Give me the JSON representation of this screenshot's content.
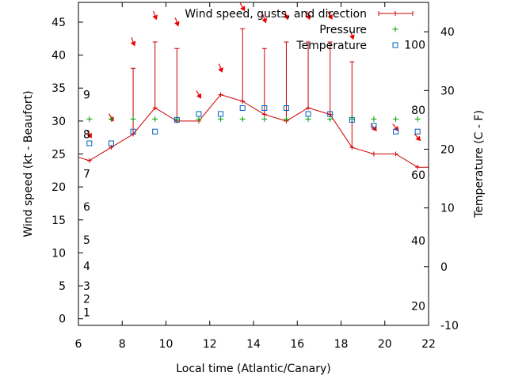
{
  "chart_data": {
    "type": "line",
    "title": "",
    "xlabel": "Local time (Atlantic/Canary)",
    "ylabel_left": "Wind speed (kt - Beaufort)",
    "ylabel_right": "Temperature (C - F)",
    "xlim": [
      6,
      22
    ],
    "ylim_left": [
      -1,
      48
    ],
    "ylim_right": [
      -10,
      45
    ],
    "x_ticks": [
      6,
      8,
      10,
      12,
      14,
      16,
      18,
      20,
      22
    ],
    "y_ticks_left": [
      0,
      5,
      10,
      15,
      20,
      25,
      30,
      35,
      40,
      45
    ],
    "y_ticks_right": [
      -10,
      0,
      10,
      20,
      30,
      40
    ],
    "beaufort_labels": [
      {
        "label": "1",
        "kt": 1
      },
      {
        "label": "2",
        "kt": 3
      },
      {
        "label": "3",
        "kt": 5
      },
      {
        "label": "4",
        "kt": 8
      },
      {
        "label": "5",
        "kt": 12
      },
      {
        "label": "6",
        "kt": 17
      },
      {
        "label": "7",
        "kt": 22
      },
      {
        "label": "8",
        "kt": 28
      },
      {
        "label": "9",
        "kt": 34
      }
    ],
    "fahrenheit_labels": [
      {
        "label": "20",
        "c": -6.7
      },
      {
        "label": "40",
        "c": 4.4
      },
      {
        "label": "60",
        "c": 15.6
      },
      {
        "label": "80",
        "c": 26.7
      },
      {
        "label": "100",
        "c": 37.8
      }
    ],
    "legend_position": "top-right",
    "series": [
      {
        "name": "Wind speed, gusts, and direction",
        "color": "#cc0000",
        "x": [
          5.5,
          6.5,
          7.5,
          8.5,
          9.5,
          10.5,
          11.5,
          12.5,
          13.5,
          14.5,
          15.5,
          16.5,
          17.5,
          18.5,
          19.5,
          20.5,
          21.5,
          22.5
        ],
        "speed": [
          25,
          24,
          26,
          28,
          32,
          30,
          30,
          34,
          33,
          31,
          30,
          32,
          31,
          26,
          25,
          25,
          23,
          23
        ],
        "gust": [
          null,
          null,
          null,
          38,
          42,
          41,
          null,
          null,
          44,
          41,
          42,
          42,
          42,
          39,
          null,
          null,
          null,
          null
        ],
        "arrow_x": [
          6.5,
          7.5,
          8.5,
          9.5,
          10.5,
          11.5,
          12.5,
          13.5,
          14.5,
          15.5,
          16.5,
          17.5,
          18.5,
          19.5,
          20.5,
          21.5
        ],
        "arrow_kt": [
          28,
          30.5,
          42,
          46,
          45,
          34,
          38,
          48,
          45.5,
          46,
          46,
          46,
          43,
          29,
          29,
          27.5
        ],
        "arrow_dir_deg": [
          210,
          210,
          200,
          200,
          200,
          210,
          200,
          210,
          200,
          200,
          200,
          210,
          200,
          220,
          220,
          220
        ]
      },
      {
        "name": "Pressure",
        "color": "#00a000",
        "x": [
          6.5,
          7.5,
          8.5,
          9.5,
          10.5,
          11.5,
          12.5,
          13.5,
          14.5,
          15.5,
          16.5,
          17.5,
          18.5,
          19.5,
          20.5,
          21.5
        ],
        "kt": [
          30.3,
          30.3,
          30.3,
          30.3,
          30.3,
          30.3,
          30.3,
          30.3,
          30.3,
          30.3,
          30.3,
          30.3,
          30.3,
          30.3,
          30.3,
          30.3
        ]
      },
      {
        "name": "Temperature",
        "color": "#0060c0",
        "x": [
          6.5,
          7.5,
          8.5,
          9.5,
          10.5,
          11.5,
          12.5,
          13.5,
          14.5,
          15.5,
          16.5,
          17.5,
          18.5,
          19.5,
          20.5,
          21.5
        ],
        "celsius": [
          21,
          21,
          23,
          23,
          25,
          26,
          26,
          27,
          27,
          27,
          26,
          26,
          25,
          24,
          23,
          23
        ]
      }
    ]
  }
}
